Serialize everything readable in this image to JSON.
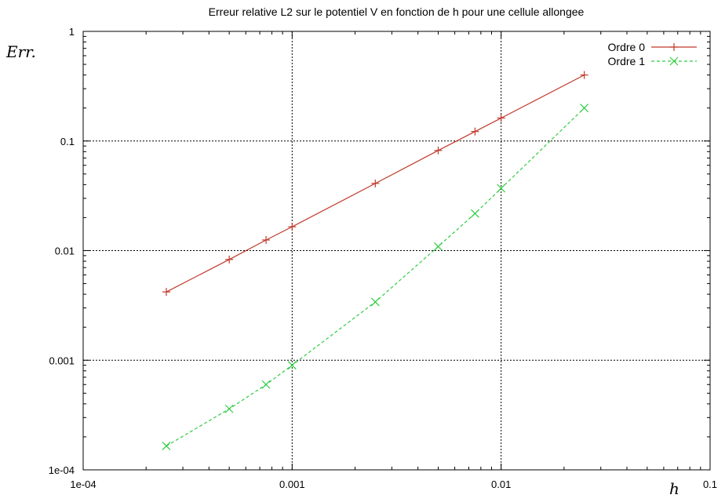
{
  "chart_data": {
    "type": "line",
    "title": "Erreur relative L2 sur le potentiel V en fonction de h pour une cellule allongee",
    "xlabel": "h",
    "ylabel": "Err.",
    "xscale": "log",
    "yscale": "log",
    "xlim": [
      0.0001,
      0.1
    ],
    "ylim": [
      0.0001,
      1
    ],
    "grid": true,
    "legend_position": "top-right",
    "x_ticks": [
      {
        "value": 0.0001,
        "label": "1e-04"
      },
      {
        "value": 0.001,
        "label": "0.001"
      },
      {
        "value": 0.01,
        "label": "0.01"
      },
      {
        "value": 0.1,
        "label": "0.1"
      }
    ],
    "y_ticks": [
      {
        "value": 1,
        "label": "1"
      },
      {
        "value": 0.1,
        "label": "0.1"
      },
      {
        "value": 0.01,
        "label": "0.01"
      },
      {
        "value": 0.001,
        "label": "0.001"
      },
      {
        "value": 0.0001,
        "label": "1e-04"
      }
    ],
    "series": [
      {
        "name": "Ordre 0",
        "color": "#c0392b",
        "marker": "plus",
        "dash": "solid",
        "x": [
          0.00025,
          0.0005,
          0.00075,
          0.001,
          0.0025,
          0.005,
          0.0075,
          0.01,
          0.025
        ],
        "y": [
          0.0042,
          0.0083,
          0.0125,
          0.0165,
          0.041,
          0.082,
          0.122,
          0.162,
          0.4
        ]
      },
      {
        "name": "Ordre 1",
        "color": "#2ecc40",
        "marker": "cross",
        "dash": "dashed",
        "x": [
          0.00025,
          0.0005,
          0.00075,
          0.001,
          0.0025,
          0.005,
          0.0075,
          0.01,
          0.025
        ],
        "y": [
          0.000165,
          0.00036,
          0.0006,
          0.0009,
          0.0034,
          0.0109,
          0.0218,
          0.037,
          0.2
        ]
      }
    ]
  }
}
